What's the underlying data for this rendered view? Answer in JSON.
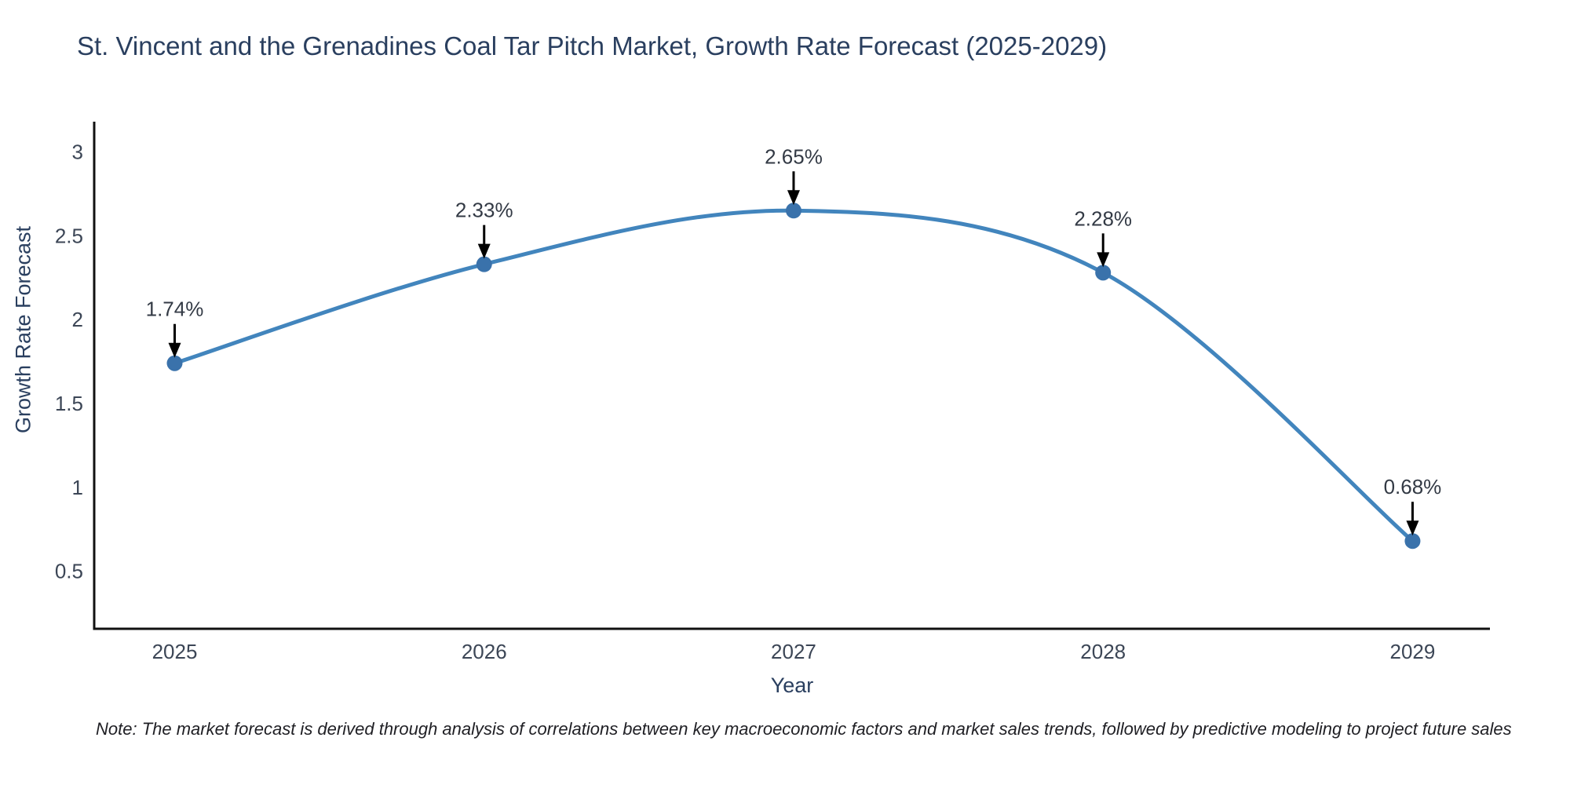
{
  "chart_data": {
    "type": "line",
    "title": "St. Vincent and the Grenadines Coal Tar Pitch Market, Growth Rate Forecast (2025-2029)",
    "xlabel": "Year",
    "ylabel": "Growth Rate Forecast",
    "x": [
      2025,
      2026,
      2027,
      2028,
      2029
    ],
    "series": [
      {
        "name": "Growth Rate Forecast",
        "values": [
          1.74,
          2.33,
          2.65,
          2.28,
          0.68
        ],
        "point_labels": [
          "1.74%",
          "2.33%",
          "2.65%",
          "2.28%",
          "0.68%"
        ]
      }
    ],
    "xtick_labels": [
      "2025",
      "2026",
      "2027",
      "2028",
      "2029"
    ],
    "ytick_values": [
      0.5,
      1,
      1.5,
      2,
      2.5,
      3
    ],
    "ytick_labels": [
      "0.5",
      "1",
      "1.5",
      "2",
      "2.5",
      "3"
    ],
    "xlim": [
      2024.74,
      2029.25
    ],
    "ylim": [
      0.157,
      3.18
    ],
    "grid": false,
    "legend_position": "none",
    "line_shape": "spline",
    "annotation_style": "value label with downward arrow above each point",
    "colors": {
      "line": "#4285bd",
      "marker": "#3a72ab",
      "axis": "#111111",
      "arrow": "#000000",
      "title_text": "#2a3f5f",
      "tick_text": "#3c4656",
      "annotation_text": "#333a45",
      "background": "#ffffff"
    },
    "note": "Note: The market forecast is derived through analysis of correlations between key macroeconomic factors and market sales trends, followed by predictive modeling to project future sales"
  }
}
